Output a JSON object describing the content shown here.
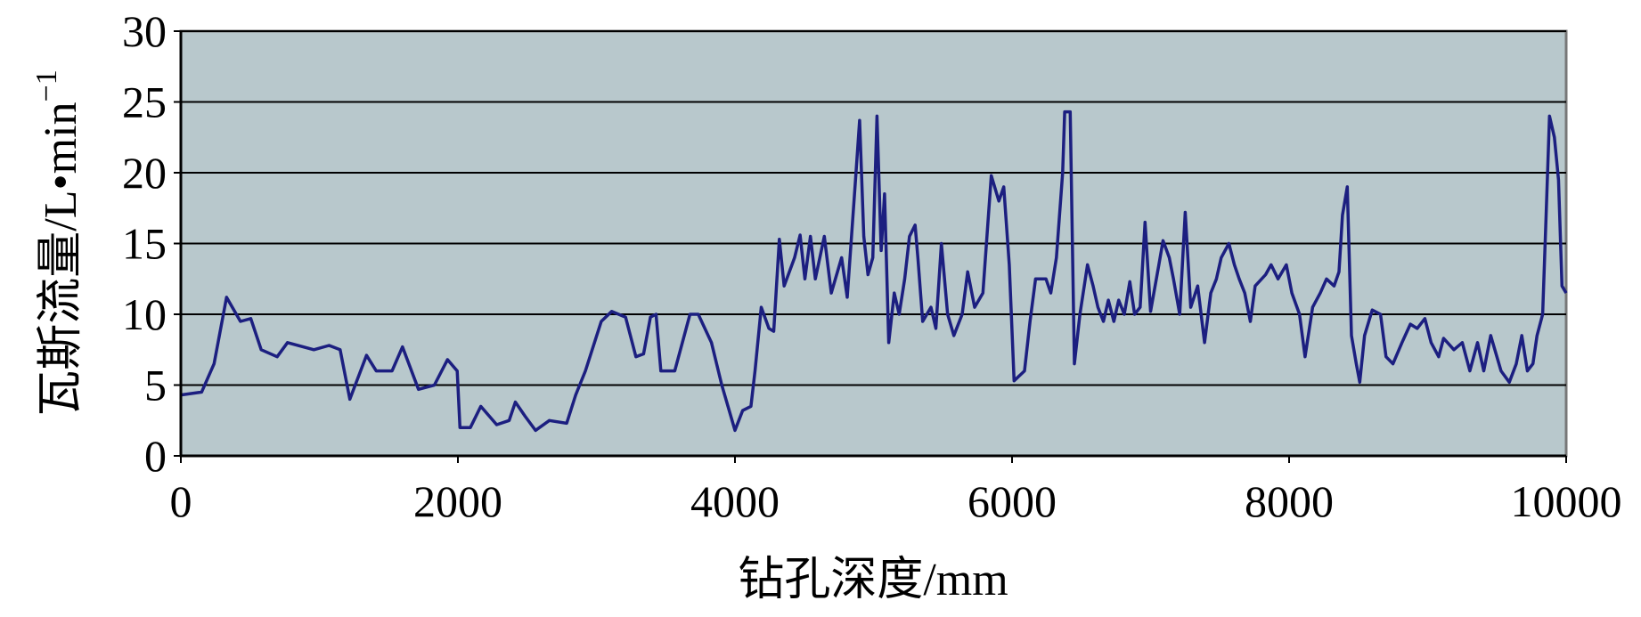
{
  "chart_data": {
    "type": "line",
    "x_label": "钻孔深度/mm",
    "y_label": "瓦斯流量/L•min",
    "y_label_superscript": "−1",
    "xlim": [
      0,
      10000
    ],
    "xticks": [
      0,
      2000,
      4000,
      6000,
      8000,
      10000
    ],
    "ylim": [
      0,
      30
    ],
    "yticks": [
      0,
      5,
      10,
      15,
      20,
      25,
      30
    ],
    "grid": true,
    "background": "#b8c8cc",
    "x": [
      0,
      150,
      240,
      330,
      430,
      505,
      580,
      695,
      770,
      960,
      1070,
      1150,
      1220,
      1340,
      1410,
      1525,
      1600,
      1715,
      1830,
      1925,
      1995,
      2015,
      2090,
      2165,
      2280,
      2370,
      2415,
      2485,
      2560,
      2660,
      2785,
      2850,
      2920,
      3035,
      3110,
      3210,
      3285,
      3340,
      3390,
      3430,
      3465,
      3565,
      3675,
      3735,
      3830,
      3905,
      4000,
      4055,
      4115,
      4145,
      4190,
      4245,
      4280,
      4320,
      4355,
      4430,
      4470,
      4505,
      4545,
      4580,
      4645,
      4695,
      4770,
      4810,
      4870,
      4900,
      4930,
      4960,
      4995,
      5025,
      5055,
      5080,
      5110,
      5150,
      5185,
      5225,
      5260,
      5300,
      5320,
      5355,
      5415,
      5450,
      5490,
      5535,
      5580,
      5640,
      5680,
      5730,
      5790,
      5850,
      5905,
      5940,
      5980,
      6015,
      6090,
      6130,
      6170,
      6245,
      6280,
      6320,
      6365,
      6380,
      6420,
      6450,
      6490,
      6545,
      6585,
      6620,
      6660,
      6695,
      6735,
      6770,
      6810,
      6850,
      6885,
      6925,
      6960,
      7000,
      7060,
      7090,
      7135,
      7165,
      7210,
      7250,
      7290,
      7340,
      7390,
      7435,
      7475,
      7510,
      7565,
      7605,
      7640,
      7680,
      7720,
      7755,
      7830,
      7870,
      7920,
      7980,
      8020,
      8075,
      8115,
      8170,
      8225,
      8270,
      8325,
      8360,
      8385,
      8420,
      8450,
      8485,
      8510,
      8545,
      8600,
      8660,
      8700,
      8750,
      8815,
      8875,
      8925,
      8980,
      9025,
      9080,
      9115,
      9190,
      9250,
      9305,
      9360,
      9405,
      9455,
      9530,
      9590,
      9640,
      9680,
      9720,
      9760,
      9790,
      9830,
      9855,
      9880,
      9915,
      9945,
      9970,
      10000
    ],
    "series": [
      {
        "color": "#1c1f80",
        "values": [
          4.3,
          4.5,
          6.5,
          11.2,
          9.5,
          9.7,
          7.5,
          7,
          8,
          7.5,
          7.8,
          7.5,
          4,
          7.1,
          6,
          6,
          7.7,
          4.7,
          5,
          6.8,
          6,
          2,
          2,
          3.5,
          2.2,
          2.5,
          3.8,
          2.8,
          1.8,
          2.5,
          2.3,
          4.3,
          6,
          9.5,
          10.2,
          9.8,
          7,
          7.2,
          9.8,
          10,
          6,
          6,
          10,
          10,
          8,
          5,
          1.8,
          3.2,
          3.5,
          6,
          10.5,
          9,
          8.8,
          15.3,
          12,
          14,
          15.6,
          12.5,
          15.5,
          12.5,
          15.5,
          11.5,
          14,
          11.2,
          19.5,
          23.7,
          15.5,
          12.8,
          14,
          24,
          14.5,
          18.5,
          8,
          11.5,
          10,
          12.5,
          15.5,
          16.3,
          14,
          9.5,
          10.5,
          9,
          15,
          10,
          8.5,
          10,
          13,
          10.5,
          11.5,
          19.8,
          18,
          19,
          13.5,
          5.3,
          6,
          9.5,
          12.5,
          12.5,
          11.5,
          14,
          20,
          24.3,
          24.3,
          6.5,
          10,
          13.5,
          12,
          10.5,
          9.5,
          11,
          9.5,
          11,
          10,
          12.3,
          10,
          10.5,
          16.5,
          10.2,
          13.5,
          15.2,
          14,
          12.5,
          10,
          17.2,
          10.5,
          12,
          8,
          11.5,
          12.5,
          14,
          15,
          13.5,
          12.5,
          11.5,
          9.5,
          12,
          12.8,
          13.5,
          12.5,
          13.5,
          11.5,
          10,
          7,
          10.5,
          11.5,
          12.5,
          12,
          13,
          17,
          19,
          8.5,
          6.5,
          5.2,
          8.5,
          10.3,
          10,
          7,
          6.5,
          8,
          9.3,
          9,
          9.7,
          8,
          7,
          8.3,
          7.5,
          8,
          6,
          8,
          6,
          8.5,
          6,
          5.2,
          6.5,
          8.5,
          6,
          6.5,
          8.5,
          10,
          17,
          24,
          22.5,
          19.5,
          12,
          11.5
        ]
      }
    ]
  }
}
